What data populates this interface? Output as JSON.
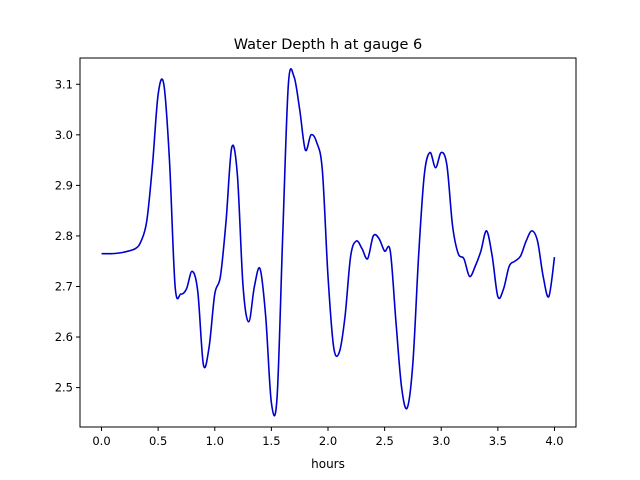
{
  "chart_data": {
    "type": "line",
    "title": "Water Depth h at gauge 6",
    "xlabel": "hours",
    "ylabel": "",
    "xlim": [
      -0.19,
      4.19
    ],
    "ylim": [
      2.422,
      3.152
    ],
    "xticks": [
      0.0,
      0.5,
      1.0,
      1.5,
      2.0,
      2.5,
      3.0,
      3.5,
      4.0
    ],
    "xtick_labels": [
      "0.0",
      "0.5",
      "1.0",
      "1.5",
      "2.0",
      "2.5",
      "3.0",
      "3.5",
      "4.0"
    ],
    "yticks": [
      2.5,
      2.6,
      2.7,
      2.8,
      2.9,
      3.0,
      3.1
    ],
    "ytick_labels": [
      "2.5",
      "2.6",
      "2.7",
      "2.8",
      "2.9",
      "3.0",
      "3.1"
    ],
    "grid": false,
    "legend": "none",
    "series": [
      {
        "color": "#0000cc",
        "x": [
          0.0,
          0.1,
          0.2,
          0.3,
          0.35,
          0.4,
          0.45,
          0.5,
          0.55,
          0.6,
          0.65,
          0.7,
          0.75,
          0.8,
          0.85,
          0.9,
          0.95,
          1.0,
          1.05,
          1.1,
          1.15,
          1.2,
          1.25,
          1.3,
          1.35,
          1.4,
          1.45,
          1.5,
          1.55,
          1.6,
          1.65,
          1.7,
          1.75,
          1.8,
          1.85,
          1.9,
          1.95,
          2.0,
          2.05,
          2.1,
          2.15,
          2.2,
          2.25,
          2.3,
          2.35,
          2.4,
          2.45,
          2.5,
          2.55,
          2.6,
          2.65,
          2.7,
          2.75,
          2.8,
          2.85,
          2.9,
          2.95,
          3.0,
          3.05,
          3.1,
          3.15,
          3.2,
          3.25,
          3.3,
          3.35,
          3.4,
          3.45,
          3.5,
          3.55,
          3.6,
          3.65,
          3.7,
          3.75,
          3.8,
          3.85,
          3.9,
          3.95,
          4.0
        ],
        "values": [
          2.765,
          2.765,
          2.768,
          2.775,
          2.79,
          2.83,
          2.94,
          3.08,
          3.1,
          2.95,
          2.7,
          2.685,
          2.695,
          2.73,
          2.69,
          2.545,
          2.58,
          2.685,
          2.72,
          2.83,
          2.975,
          2.92,
          2.7,
          2.63,
          2.7,
          2.735,
          2.64,
          2.47,
          2.48,
          2.8,
          3.1,
          3.115,
          3.05,
          2.97,
          3.0,
          2.985,
          2.93,
          2.72,
          2.58,
          2.57,
          2.64,
          2.76,
          2.79,
          2.775,
          2.755,
          2.8,
          2.795,
          2.77,
          2.77,
          2.63,
          2.5,
          2.46,
          2.55,
          2.76,
          2.92,
          2.965,
          2.935,
          2.965,
          2.94,
          2.82,
          2.765,
          2.755,
          2.72,
          2.74,
          2.77,
          2.81,
          2.76,
          2.68,
          2.695,
          2.74,
          2.75,
          2.76,
          2.79,
          2.81,
          2.79,
          2.72,
          2.68,
          2.758
        ]
      }
    ]
  }
}
